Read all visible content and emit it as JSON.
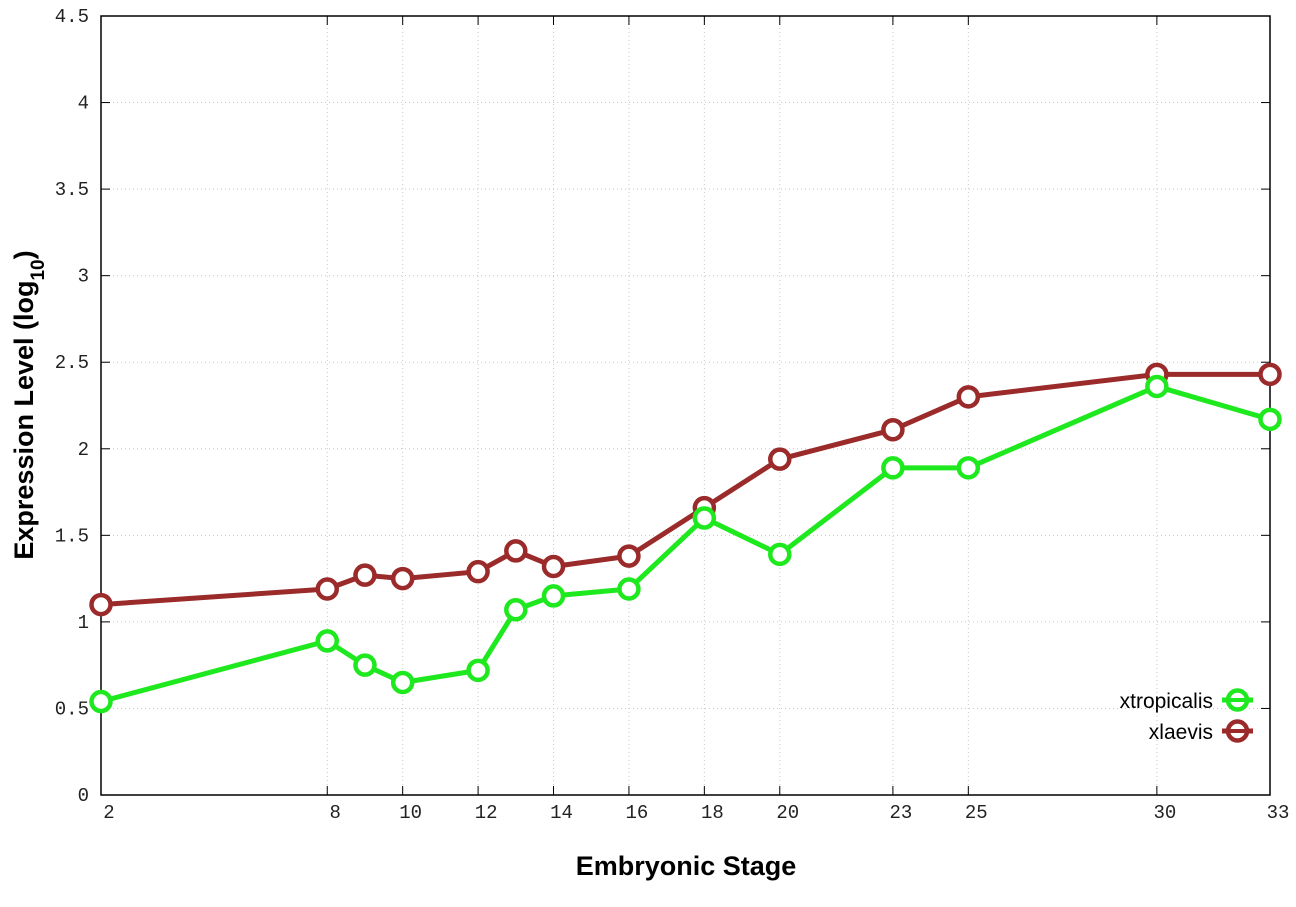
{
  "chart_data": {
    "type": "line",
    "title": "",
    "xlabel": "Embryonic Stage",
    "ylabel_main": "Expression Level (log",
    "ylabel_sub": "10",
    "ylabel_close": ")",
    "xlim": [
      2,
      33
    ],
    "ylim": [
      0,
      4.5
    ],
    "x_ticks": [
      2,
      8,
      10,
      12,
      14,
      16,
      18,
      20,
      23,
      25,
      30,
      33
    ],
    "y_ticks": [
      "0",
      "0.5",
      "1",
      "1.5",
      "2",
      "2.5",
      "3",
      "3.5",
      "4",
      "4.5"
    ],
    "grid": true,
    "legend_placement": "bottom-right",
    "x": [
      2,
      8,
      9,
      10,
      12,
      13,
      14,
      16,
      18,
      20,
      23,
      25,
      30,
      33
    ],
    "series": [
      {
        "name": "xtropicalis",
        "color": "#1ee81e",
        "values": [
          0.54,
          0.89,
          0.75,
          0.65,
          0.72,
          1.07,
          1.15,
          1.19,
          1.6,
          1.39,
          1.89,
          1.89,
          2.36,
          2.17
        ]
      },
      {
        "name": "xlaevis",
        "color": "#9b2a2a",
        "values": [
          1.1,
          1.19,
          1.27,
          1.25,
          1.29,
          1.41,
          1.32,
          1.38,
          1.66,
          1.94,
          2.11,
          2.3,
          2.43,
          2.43
        ]
      }
    ]
  }
}
